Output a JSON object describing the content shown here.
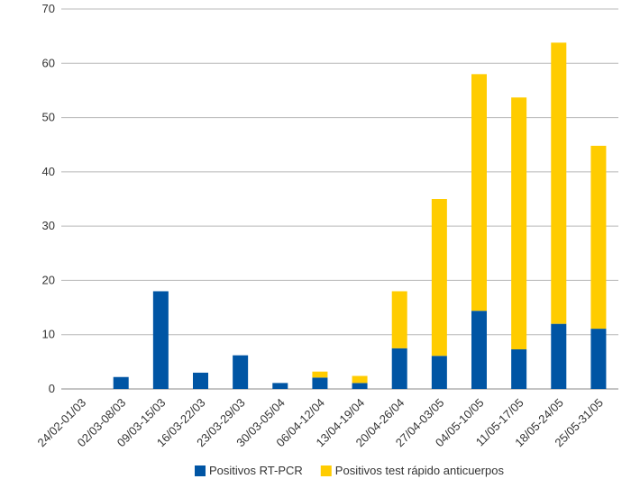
{
  "chart_data": {
    "type": "bar",
    "stacked": true,
    "title": "",
    "xlabel": "",
    "ylabel": "",
    "ylim": [
      0,
      70
    ],
    "yticks": [
      0,
      10,
      20,
      30,
      40,
      50,
      60,
      70
    ],
    "grid": true,
    "legend_position": "bottom",
    "categories": [
      "24/02-01/03",
      "02/03-08/03",
      "09/03-15/03",
      "16/03-22/03",
      "23/03-29/03",
      "30/03-05/04",
      "06/04-12/04",
      "13/04-19/04",
      "20/04-26/04",
      "27/04-03/05",
      "04/05-10/05",
      "11/05-17/05",
      "18/05-24/05",
      "25/05-31/05"
    ],
    "series": [
      {
        "name": "Positivos RT-PCR",
        "color": "#0055a4",
        "values": [
          0,
          2.2,
          18,
          3,
          6.2,
          1.1,
          2.1,
          1.1,
          7.5,
          6.1,
          14.4,
          7.3,
          12,
          11.1
        ]
      },
      {
        "name": "Positivos test rápido anticuerpos",
        "color": "#ffcc00",
        "values": [
          0,
          0,
          0,
          0,
          0,
          0,
          1.1,
          1.3,
          10.5,
          28.9,
          43.6,
          46.4,
          51.8,
          33.7
        ]
      }
    ]
  }
}
